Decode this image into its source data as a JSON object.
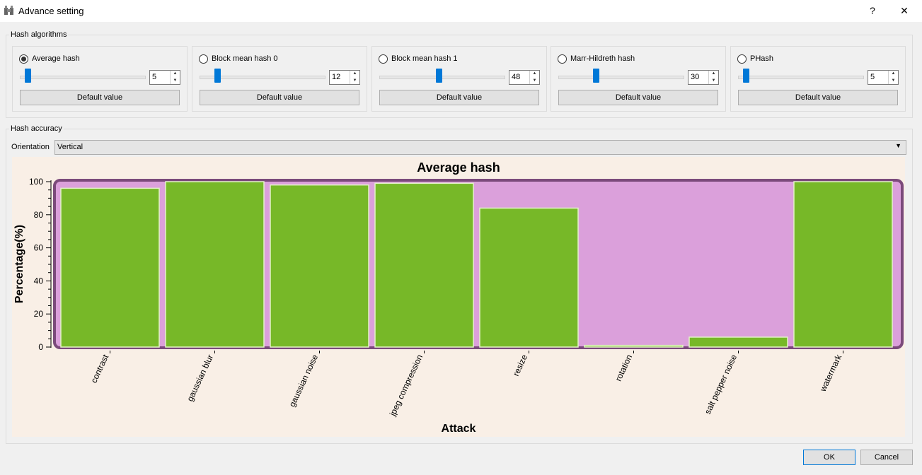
{
  "window": {
    "title": "Advance setting",
    "help": "?",
    "close": "✕"
  },
  "hash_algorithms": {
    "label": "Hash algorithms",
    "panels": [
      {
        "name": "Average hash",
        "value": "5",
        "selected": true,
        "slider": 0.06,
        "button": "Default value"
      },
      {
        "name": "Block mean hash 0",
        "value": "12",
        "selected": false,
        "slider": 0.14,
        "button": "Default value"
      },
      {
        "name": "Block mean hash 1",
        "value": "48",
        "selected": false,
        "slider": 0.48,
        "button": "Default value"
      },
      {
        "name": "Marr-Hildreth hash",
        "value": "30",
        "selected": false,
        "slider": 0.3,
        "button": "Default value"
      },
      {
        "name": "PHash",
        "value": "5",
        "selected": false,
        "slider": 0.06,
        "button": "Default value"
      }
    ]
  },
  "hash_accuracy": {
    "label": "Hash accuracy",
    "orientation_label": "Orientation",
    "orientation_value": "Vertical"
  },
  "chart_data": {
    "type": "bar",
    "title": "Average hash",
    "xlabel": "Attack",
    "ylabel": "Percentage(%)",
    "categories": [
      "contrast",
      "gaussian blur",
      "gaussian noise",
      "jpeg compression",
      "resize",
      "rotation",
      "salt pepper noise",
      "watermark"
    ],
    "values": [
      96,
      100,
      98,
      99,
      84,
      1,
      6,
      100
    ],
    "ylim": [
      0,
      100
    ],
    "yticks": [
      "0",
      "20",
      "40",
      "60",
      "80",
      "100"
    ],
    "colors": {
      "bar": "#77b828",
      "plot_bg": "#dba0db",
      "page_bg": "#f9efe6",
      "frame": "#7b4a7b"
    }
  },
  "footer": {
    "ok": "OK",
    "cancel": "Cancel"
  }
}
